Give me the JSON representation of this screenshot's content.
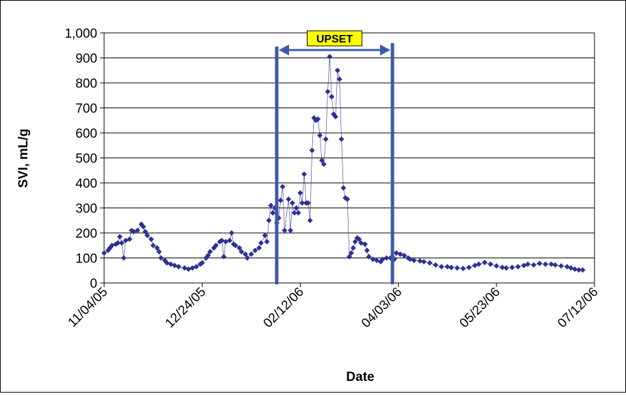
{
  "chart_data": {
    "type": "scatter-line",
    "x_label": "Date",
    "y_label": "SVI, mL/g",
    "xlim": [
      "2005-11-04",
      "2006-07-12"
    ],
    "xticks": [
      {
        "value": "2005-11-04",
        "label": "11/04/05"
      },
      {
        "value": "2005-12-24",
        "label": "12/24/05"
      },
      {
        "value": "2006-02-12",
        "label": "02/12/06"
      },
      {
        "value": "2006-04-03",
        "label": "04/03/06"
      },
      {
        "value": "2006-05-23",
        "label": "05/23/06"
      },
      {
        "value": "2006-07-12",
        "label": "07/12/06"
      }
    ],
    "ylim": [
      0,
      1000
    ],
    "yticks": [
      0,
      100,
      200,
      300,
      400,
      500,
      600,
      700,
      800,
      900,
      {
        "value": 1000,
        "label": "1,000"
      }
    ],
    "grid": true,
    "color": "#2e3192",
    "annotations": [
      {
        "label": "UPSET",
        "x_start": "2006-01-31",
        "x_end": "2006-03-31",
        "color": "#3c5aa8",
        "label_color": "#ffff00"
      }
    ],
    "x": [
      "2005-11-04",
      "2005-11-06",
      "2005-11-07",
      "2005-11-08",
      "2005-11-10",
      "2005-11-11",
      "2005-11-12",
      "2005-11-13",
      "2005-11-14",
      "2005-11-15",
      "2005-11-17",
      "2005-11-18",
      "2005-11-19",
      "2005-11-21",
      "2005-11-23",
      "2005-11-24",
      "2005-11-25",
      "2005-11-26",
      "2005-11-28",
      "2005-11-29",
      "2005-12-01",
      "2005-12-02",
      "2005-12-03",
      "2005-12-05",
      "2005-12-06",
      "2005-12-08",
      "2005-12-10",
      "2005-12-12",
      "2005-12-15",
      "2005-12-17",
      "2005-12-19",
      "2005-12-21",
      "2005-12-23",
      "2005-12-24",
      "2005-12-26",
      "2005-12-27",
      "2005-12-28",
      "2005-12-30",
      "2005-12-31",
      "2006-01-02",
      "2006-01-03",
      "2006-01-04",
      "2006-01-05",
      "2006-01-07",
      "2006-01-08",
      "2006-01-09",
      "2006-01-10",
      "2006-01-12",
      "2006-01-13",
      "2006-01-15",
      "2006-01-16",
      "2006-01-18",
      "2006-01-20",
      "2006-01-22",
      "2006-01-23",
      "2006-01-25",
      "2006-01-26",
      "2006-01-27",
      "2006-01-28",
      "2006-01-29",
      "2006-01-30",
      "2006-01-31",
      "2006-02-01",
      "2006-02-02",
      "2006-02-03",
      "2006-02-04",
      "2006-02-06",
      "2006-02-07",
      "2006-02-08",
      "2006-02-09",
      "2006-02-10",
      "2006-02-11",
      "2006-02-12",
      "2006-02-13",
      "2006-02-14",
      "2006-02-15",
      "2006-02-16",
      "2006-02-17",
      "2006-02-18",
      "2006-02-19",
      "2006-02-20",
      "2006-02-21",
      "2006-02-22",
      "2006-02-23",
      "2006-02-24",
      "2006-02-25",
      "2006-02-26",
      "2006-02-27",
      "2006-02-28",
      "2006-03-01",
      "2006-03-02",
      "2006-03-03",
      "2006-03-04",
      "2006-03-05",
      "2006-03-06",
      "2006-03-07",
      "2006-03-08",
      "2006-03-09",
      "2006-03-10",
      "2006-03-11",
      "2006-03-12",
      "2006-03-13",
      "2006-03-14",
      "2006-03-15",
      "2006-03-17",
      "2006-03-18",
      "2006-03-19",
      "2006-03-21",
      "2006-03-23",
      "2006-03-25",
      "2006-03-26",
      "2006-03-28",
      "2006-03-30",
      "2006-04-01",
      "2006-04-02",
      "2006-04-04",
      "2006-04-06",
      "2006-04-08",
      "2006-04-09",
      "2006-04-11",
      "2006-04-14",
      "2006-04-16",
      "2006-04-19",
      "2006-04-22",
      "2006-04-25",
      "2006-04-28",
      "2006-04-30",
      "2006-05-03",
      "2006-05-06",
      "2006-05-09",
      "2006-05-12",
      "2006-05-14",
      "2006-05-17",
      "2006-05-20",
      "2006-05-23",
      "2006-05-26",
      "2006-05-28",
      "2006-05-31",
      "2006-06-03",
      "2006-06-06",
      "2006-06-08",
      "2006-06-11",
      "2006-06-14",
      "2006-06-17",
      "2006-06-20",
      "2006-06-22",
      "2006-06-25",
      "2006-06-28",
      "2006-06-30",
      "2006-07-02",
      "2006-07-04",
      "2006-07-06"
    ],
    "values": [
      120,
      130,
      140,
      150,
      155,
      160,
      185,
      160,
      100,
      170,
      175,
      210,
      205,
      210,
      235,
      225,
      205,
      190,
      175,
      150,
      140,
      125,
      100,
      90,
      80,
      75,
      70,
      65,
      60,
      55,
      60,
      65,
      75,
      80,
      100,
      110,
      125,
      140,
      150,
      165,
      170,
      105,
      165,
      170,
      200,
      155,
      150,
      140,
      125,
      115,
      100,
      115,
      130,
      140,
      160,
      190,
      165,
      250,
      310,
      280,
      300,
      240,
      260,
      330,
      385,
      210,
      335,
      210,
      320,
      280,
      300,
      280,
      360,
      320,
      435,
      320,
      320,
      250,
      530,
      660,
      650,
      655,
      590,
      490,
      475,
      575,
      765,
      905,
      745,
      675,
      665,
      850,
      815,
      575,
      380,
      340,
      335,
      105,
      120,
      140,
      165,
      180,
      175,
      160,
      155,
      130,
      105,
      95,
      90,
      85,
      95,
      100,
      100,
      95,
      120,
      115,
      110,
      100,
      95,
      90,
      88,
      85,
      80,
      72,
      65,
      65,
      62,
      60,
      58,
      62,
      70,
      75,
      82,
      75,
      68,
      62,
      60,
      62,
      65,
      70,
      75,
      72,
      78,
      75,
      75,
      72,
      68,
      65,
      60,
      55,
      52,
      52
    ]
  }
}
